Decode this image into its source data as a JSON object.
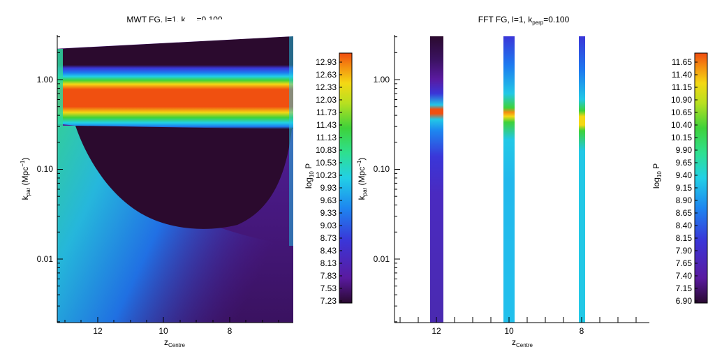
{
  "chart_data": [
    {
      "type": "heatmap",
      "title_main": "MWT FG, l=1, k",
      "title_sub": "perp",
      "title_tail": "=0.100",
      "xlabel_main": "z",
      "xlabel_sub": "Centre",
      "ylabel_main": "k",
      "ylabel_sub": "par",
      "ylabel_tail": " (Mpc",
      "ylabel_sup": "−1",
      "ylabel_close": ")",
      "x_ticks": [
        "12",
        "10",
        "8"
      ],
      "y_ticks": [
        "1.00",
        "0.10",
        "0.01"
      ],
      "yscale": "log",
      "colorbar_label_main": "log",
      "colorbar_label_sub": "10",
      "colorbar_label_tail": " P",
      "colorbar_ticks": [
        "12.93",
        "12.63",
        "12.33",
        "12.03",
        "11.73",
        "11.43",
        "11.13",
        "10.83",
        "10.53",
        "10.23",
        "9.93",
        "9.63",
        "9.33",
        "9.03",
        "8.73",
        "8.43",
        "8.13",
        "7.83",
        "7.53",
        "7.23"
      ],
      "colorbar_range": [
        7.23,
        12.93
      ],
      "colormap": [
        "#3a0a4a",
        "#5a1aa0",
        "#3a36d8",
        "#1d7af0",
        "#22c8e6",
        "#2edc9a",
        "#3ed23a",
        "#a8e020",
        "#f4e014",
        "#f49a10",
        "#f05010"
      ],
      "features": {
        "band_peak_color": "#f05010",
        "dark_color": "#2b0a2e",
        "background_color": "#4a1a8a"
      }
    },
    {
      "type": "heatmap",
      "title_main": "FFT FG, l=1, k",
      "title_sub": "perp",
      "title_tail": "=0.100",
      "xlabel_main": "z",
      "xlabel_sub": "Centre",
      "ylabel_main": "k",
      "ylabel_sub": "par",
      "ylabel_tail": " (Mpc",
      "ylabel_sup": "−1",
      "ylabel_close": ")",
      "x_ticks": [
        "12",
        "10",
        "8"
      ],
      "y_ticks": [
        "1.00",
        "0.10",
        "0.01"
      ],
      "yscale": "log",
      "colorbar_label_main": "log",
      "colorbar_label_sub": "10",
      "colorbar_label_tail": " P",
      "colorbar_ticks": [
        "11.65",
        "11.40",
        "11.15",
        "10.90",
        "10.65",
        "10.40",
        "10.15",
        "9.90",
        "9.65",
        "9.40",
        "9.15",
        "8.90",
        "8.65",
        "8.40",
        "8.15",
        "7.90",
        "7.65",
        "7.40",
        "7.15",
        "6.90"
      ],
      "colorbar_range": [
        6.9,
        11.65
      ],
      "columns": [
        "12",
        "10",
        "8"
      ]
    }
  ]
}
